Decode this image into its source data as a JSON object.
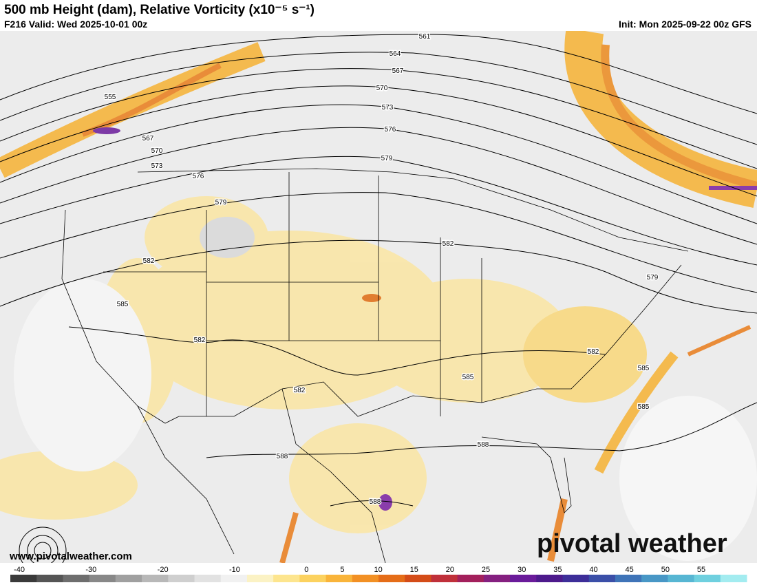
{
  "header": {
    "title": "500 mb Height (dam), Relative Vorticity (x10⁻⁵ s⁻¹)",
    "valid": "F216 Valid: Wed 2025-10-01 00z",
    "init": "Init: Mon 2025-09-22 00z GFS"
  },
  "contour_labels": [
    "561",
    "564",
    "567",
    "570",
    "573",
    "576",
    "579",
    "555",
    "567",
    "570",
    "573",
    "576",
    "579",
    "582",
    "585",
    "582",
    "582",
    "582",
    "585",
    "585",
    "585",
    "588",
    "588",
    "582",
    "579",
    "588"
  ],
  "watermark": {
    "url": "www.pivotalweather.com",
    "brand": "pivotal weather"
  },
  "colorbar": {
    "ticks": [
      -40,
      -30,
      -20,
      -10,
      0,
      5,
      10,
      15,
      20,
      25,
      30,
      35,
      40,
      45,
      50,
      55
    ]
  }
}
